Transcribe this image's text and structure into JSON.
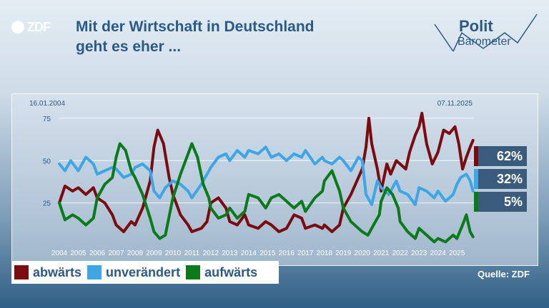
{
  "brand": {
    "logo_text": "ZDF",
    "polit": "Polit",
    "barometer": "Barometer"
  },
  "headline": {
    "line1": "Mit der Wirtschaft in Deutschland",
    "line2": "geht es eher ..."
  },
  "source": "Quelle: ZDF",
  "colors": {
    "abwaerts": "#7a0b10",
    "unveraendert": "#3fa6e6",
    "aufwaerts": "#0b7a1a",
    "text": "#2c5a86",
    "badge": "#3b5b7d"
  },
  "chart_data": {
    "type": "line",
    "start_date": "16.01.2004",
    "end_date": "07.11.2025",
    "xlim": [
      2004.0,
      2025.9
    ],
    "ylim": [
      0,
      80
    ],
    "yticks": [
      25,
      50,
      75
    ],
    "xticks": [
      "2004",
      "2005",
      "2006",
      "2007",
      "2008",
      "2009",
      "2010",
      "2011",
      "2012",
      "2013",
      "2014",
      "2015",
      "2016",
      "2017",
      "2018",
      "2019",
      "2020",
      "2021",
      "2022",
      "2023",
      "2024",
      "2025"
    ],
    "legend": [
      "abwärts",
      "unverändert",
      "aufwärts"
    ],
    "final_labels": [
      "62%",
      "32%",
      "5%"
    ],
    "series": [
      {
        "name": "abwärts",
        "color": "#7a0b10",
        "points": [
          [
            2004.0,
            25
          ],
          [
            2004.3,
            35
          ],
          [
            2004.7,
            32
          ],
          [
            2005.0,
            34
          ],
          [
            2005.4,
            30
          ],
          [
            2005.8,
            34
          ],
          [
            2006.0,
            28
          ],
          [
            2006.4,
            25
          ],
          [
            2006.8,
            18
          ],
          [
            2007.0,
            12
          ],
          [
            2007.4,
            8
          ],
          [
            2007.8,
            14
          ],
          [
            2008.0,
            12
          ],
          [
            2008.4,
            22
          ],
          [
            2008.8,
            38
          ],
          [
            2009.0,
            58
          ],
          [
            2009.2,
            68
          ],
          [
            2009.5,
            60
          ],
          [
            2009.8,
            40
          ],
          [
            2010.0,
            30
          ],
          [
            2010.4,
            18
          ],
          [
            2010.8,
            12
          ],
          [
            2011.0,
            8
          ],
          [
            2011.5,
            10
          ],
          [
            2011.8,
            14
          ],
          [
            2012.0,
            25
          ],
          [
            2012.4,
            28
          ],
          [
            2012.8,
            22
          ],
          [
            2013.0,
            14
          ],
          [
            2013.4,
            12
          ],
          [
            2013.8,
            18
          ],
          [
            2014.0,
            12
          ],
          [
            2014.5,
            10
          ],
          [
            2014.9,
            14
          ],
          [
            2015.2,
            12
          ],
          [
            2015.6,
            8
          ],
          [
            2016.0,
            10
          ],
          [
            2016.4,
            18
          ],
          [
            2016.8,
            16
          ],
          [
            2017.0,
            10
          ],
          [
            2017.5,
            12
          ],
          [
            2017.9,
            10
          ],
          [
            2018.0,
            12
          ],
          [
            2018.4,
            8
          ],
          [
            2018.8,
            12
          ],
          [
            2019.0,
            22
          ],
          [
            2019.4,
            30
          ],
          [
            2019.8,
            40
          ],
          [
            2020.0,
            45
          ],
          [
            2020.2,
            58
          ],
          [
            2020.35,
            75
          ],
          [
            2020.5,
            60
          ],
          [
            2020.8,
            45
          ],
          [
            2021.0,
            32
          ],
          [
            2021.3,
            48
          ],
          [
            2021.5,
            42
          ],
          [
            2021.8,
            50
          ],
          [
            2022.0,
            48
          ],
          [
            2022.3,
            45
          ],
          [
            2022.5,
            55
          ],
          [
            2022.8,
            65
          ],
          [
            2023.0,
            70
          ],
          [
            2023.15,
            78
          ],
          [
            2023.4,
            60
          ],
          [
            2023.7,
            48
          ],
          [
            2024.0,
            55
          ],
          [
            2024.3,
            68
          ],
          [
            2024.6,
            66
          ],
          [
            2024.9,
            70
          ],
          [
            2025.1,
            60
          ],
          [
            2025.3,
            45
          ],
          [
            2025.5,
            52
          ],
          [
            2025.7,
            58
          ],
          [
            2025.85,
            62
          ]
        ]
      },
      {
        "name": "unverändert",
        "color": "#3fa6e6",
        "points": [
          [
            2004.0,
            48
          ],
          [
            2004.3,
            44
          ],
          [
            2004.6,
            50
          ],
          [
            2005.0,
            44
          ],
          [
            2005.4,
            52
          ],
          [
            2005.8,
            48
          ],
          [
            2006.0,
            42
          ],
          [
            2006.4,
            44
          ],
          [
            2006.8,
            46
          ],
          [
            2007.0,
            45
          ],
          [
            2007.4,
            40
          ],
          [
            2007.8,
            42
          ],
          [
            2008.0,
            46
          ],
          [
            2008.4,
            48
          ],
          [
            2008.8,
            44
          ],
          [
            2009.0,
            32
          ],
          [
            2009.3,
            28
          ],
          [
            2009.6,
            34
          ],
          [
            2010.0,
            38
          ],
          [
            2010.4,
            36
          ],
          [
            2010.8,
            32
          ],
          [
            2011.0,
            28
          ],
          [
            2011.5,
            36
          ],
          [
            2011.8,
            42
          ],
          [
            2012.0,
            46
          ],
          [
            2012.4,
            52
          ],
          [
            2012.8,
            54
          ],
          [
            2013.0,
            50
          ],
          [
            2013.4,
            56
          ],
          [
            2013.8,
            52
          ],
          [
            2014.0,
            56
          ],
          [
            2014.5,
            54
          ],
          [
            2014.9,
            58
          ],
          [
            2015.2,
            52
          ],
          [
            2015.6,
            54
          ],
          [
            2016.0,
            50
          ],
          [
            2016.4,
            54
          ],
          [
            2016.8,
            52
          ],
          [
            2017.0,
            56
          ],
          [
            2017.5,
            48
          ],
          [
            2017.9,
            52
          ],
          [
            2018.0,
            50
          ],
          [
            2018.4,
            48
          ],
          [
            2018.8,
            52
          ],
          [
            2019.0,
            50
          ],
          [
            2019.4,
            44
          ],
          [
            2019.8,
            52
          ],
          [
            2020.0,
            50
          ],
          [
            2020.2,
            30
          ],
          [
            2020.5,
            24
          ],
          [
            2020.8,
            38
          ],
          [
            2021.0,
            34
          ],
          [
            2021.4,
            30
          ],
          [
            2021.8,
            38
          ],
          [
            2022.0,
            32
          ],
          [
            2022.4,
            30
          ],
          [
            2022.8,
            24
          ],
          [
            2023.0,
            34
          ],
          [
            2023.4,
            32
          ],
          [
            2023.8,
            28
          ],
          [
            2024.0,
            32
          ],
          [
            2024.4,
            26
          ],
          [
            2024.8,
            30
          ],
          [
            2025.0,
            36
          ],
          [
            2025.2,
            40
          ],
          [
            2025.5,
            42
          ],
          [
            2025.7,
            38
          ],
          [
            2025.85,
            32
          ]
        ]
      },
      {
        "name": "aufwärts",
        "color": "#0b7a1a",
        "points": [
          [
            2004.0,
            25
          ],
          [
            2004.3,
            15
          ],
          [
            2004.7,
            18
          ],
          [
            2005.0,
            16
          ],
          [
            2005.4,
            12
          ],
          [
            2005.8,
            16
          ],
          [
            2006.0,
            28
          ],
          [
            2006.4,
            36
          ],
          [
            2006.8,
            40
          ],
          [
            2007.0,
            52
          ],
          [
            2007.2,
            60
          ],
          [
            2007.5,
            56
          ],
          [
            2007.8,
            44
          ],
          [
            2008.0,
            40
          ],
          [
            2008.4,
            30
          ],
          [
            2008.8,
            16
          ],
          [
            2009.0,
            8
          ],
          [
            2009.3,
            4
          ],
          [
            2009.6,
            6
          ],
          [
            2010.0,
            28
          ],
          [
            2010.4,
            42
          ],
          [
            2010.8,
            54
          ],
          [
            2011.0,
            60
          ],
          [
            2011.3,
            52
          ],
          [
            2011.6,
            36
          ],
          [
            2011.9,
            28
          ],
          [
            2012.0,
            22
          ],
          [
            2012.4,
            16
          ],
          [
            2012.8,
            18
          ],
          [
            2013.0,
            22
          ],
          [
            2013.4,
            16
          ],
          [
            2013.8,
            20
          ],
          [
            2014.0,
            30
          ],
          [
            2014.5,
            28
          ],
          [
            2014.9,
            22
          ],
          [
            2015.2,
            28
          ],
          [
            2015.6,
            30
          ],
          [
            2016.0,
            26
          ],
          [
            2016.4,
            22
          ],
          [
            2016.8,
            26
          ],
          [
            2017.0,
            20
          ],
          [
            2017.5,
            28
          ],
          [
            2017.9,
            32
          ],
          [
            2018.0,
            38
          ],
          [
            2018.4,
            44
          ],
          [
            2018.8,
            32
          ],
          [
            2019.0,
            22
          ],
          [
            2019.4,
            14
          ],
          [
            2019.8,
            10
          ],
          [
            2020.0,
            8
          ],
          [
            2020.3,
            6
          ],
          [
            2020.6,
            12
          ],
          [
            2020.9,
            18
          ],
          [
            2021.0,
            26
          ],
          [
            2021.3,
            34
          ],
          [
            2021.6,
            30
          ],
          [
            2021.9,
            22
          ],
          [
            2022.0,
            14
          ],
          [
            2022.4,
            8
          ],
          [
            2022.8,
            4
          ],
          [
            2023.0,
            10
          ],
          [
            2023.4,
            6
          ],
          [
            2023.8,
            2
          ],
          [
            2024.0,
            4
          ],
          [
            2024.4,
            2
          ],
          [
            2024.8,
            6
          ],
          [
            2025.0,
            4
          ],
          [
            2025.3,
            12
          ],
          [
            2025.5,
            18
          ],
          [
            2025.7,
            8
          ],
          [
            2025.85,
            5
          ]
        ]
      }
    ]
  }
}
